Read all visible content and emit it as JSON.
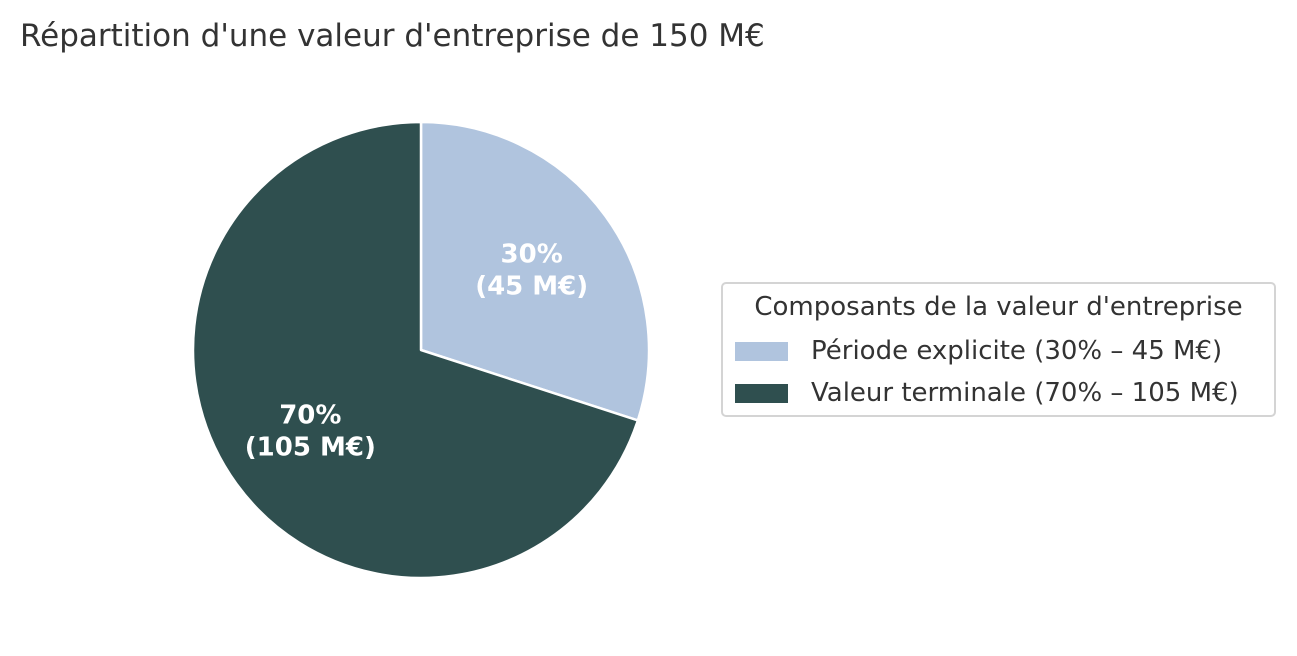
{
  "chart_data": {
    "type": "pie",
    "title": "Répartition d'une valeur d'entreprise de 150 M€",
    "slices": [
      {
        "name": "Période explicite",
        "value": 45,
        "percent": 30,
        "label_line1": "30%",
        "label_line2": "(45 M€)",
        "legend_label": "Période explicite (30% – 45 M€)",
        "color": "#b0c4de"
      },
      {
        "name": "Valeur terminale",
        "value": 105,
        "percent": 70,
        "label_line1": "70%",
        "label_line2": "(105 M€)",
        "legend_label": "Valeur terminale (70% – 105 M€)",
        "color": "#2f4f4f"
      }
    ],
    "total": 150,
    "unit": "M€",
    "start_angle": "12 o'clock",
    "direction": "clockwise",
    "label_color": "#ffffff",
    "edge_color": "#ffffff",
    "legend": {
      "title": "Composants de la valeur d'entreprise",
      "placement": "center-right"
    }
  }
}
